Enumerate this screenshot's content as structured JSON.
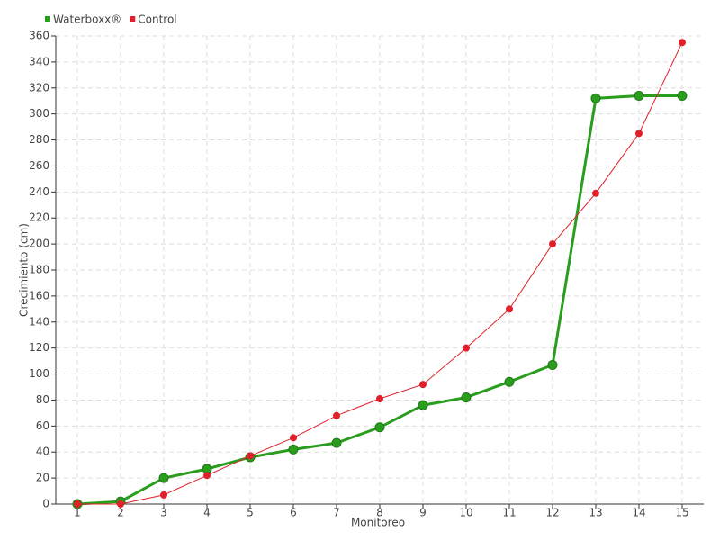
{
  "chart_data": {
    "type": "line",
    "x_label": "Monitoreo",
    "y_label": "Crecimiento (cm)",
    "categories": [
      "1",
      "2",
      "3",
      "4",
      "5",
      "6",
      "7",
      "8",
      "9",
      "10",
      "11",
      "12",
      "13",
      "14",
      "15"
    ],
    "series": [
      {
        "name": "Waterboxx®",
        "color": "#2a9d1f",
        "values": [
          0,
          2,
          20,
          27,
          36,
          42,
          47,
          59,
          76,
          82,
          94,
          107,
          312,
          314,
          314
        ]
      },
      {
        "name": "Control",
        "color": "#e0202a",
        "values": [
          0,
          0,
          7,
          22,
          37,
          51,
          68,
          81,
          92,
          120,
          150,
          200,
          239,
          285,
          355
        ]
      }
    ],
    "ylim": [
      0,
      360
    ],
    "yticks": [
      0,
      20,
      40,
      60,
      80,
      100,
      120,
      140,
      160,
      180,
      200,
      220,
      240,
      260,
      280,
      300,
      320,
      340,
      360
    ],
    "grid": true,
    "legend": "top-left"
  }
}
